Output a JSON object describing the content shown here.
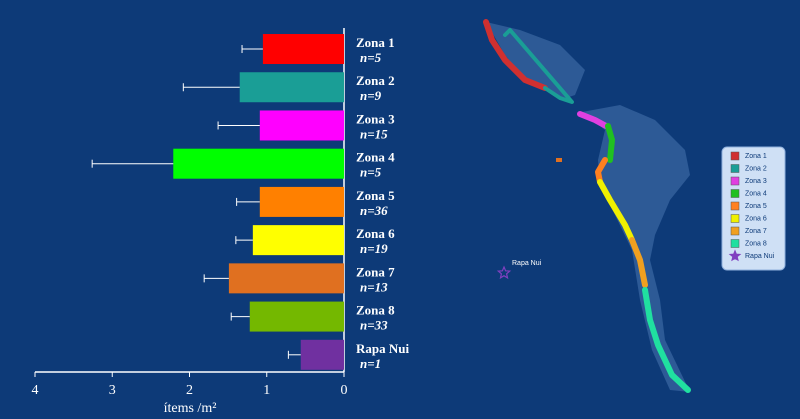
{
  "chart_data": {
    "type": "bar",
    "orientation": "horizontal",
    "categories": [
      "Zona 1",
      "Zona 2",
      "Zona 3",
      "Zona 4",
      "Zona 5",
      "Zona 6",
      "Zona 7",
      "Zona 8",
      "Rapa Nui"
    ],
    "sample_sizes": [
      "n=5",
      "n=9",
      "n=15",
      "n=5",
      "n=36",
      "n=19",
      "n=13",
      "n=33",
      "n=1"
    ],
    "values": [
      1.05,
      1.35,
      1.09,
      2.21,
      1.09,
      1.18,
      1.49,
      1.22,
      0.56
    ],
    "errors": [
      0.27,
      0.73,
      0.54,
      1.05,
      0.3,
      0.22,
      0.32,
      0.24,
      0.16
    ],
    "colors": [
      "#ff0000",
      "#1a9e96",
      "#ff00ff",
      "#00ff00",
      "#ff8000",
      "#ffff00",
      "#e07020",
      "#74b800",
      "#7030a0"
    ],
    "xlabel": "ítems /m²",
    "xlim": [
      4,
      0
    ],
    "xticks": [
      4,
      3,
      2,
      1,
      0
    ]
  },
  "map": {
    "label": "Rapa Nui",
    "legend": [
      {
        "label": "Zona 1",
        "color": "#d03030"
      },
      {
        "label": "Zona 2",
        "color": "#1a9e96"
      },
      {
        "label": "Zona 3",
        "color": "#e040e0"
      },
      {
        "label": "Zona 4",
        "color": "#20c020"
      },
      {
        "label": "Zona 5",
        "color": "#ff8020"
      },
      {
        "label": "Zona 6",
        "color": "#f0f000"
      },
      {
        "label": "Zona 7",
        "color": "#f0a020"
      },
      {
        "label": "Zona 8",
        "color": "#20e0a0"
      },
      {
        "label": "Rapa Nui",
        "color": "#8040c0"
      }
    ]
  }
}
